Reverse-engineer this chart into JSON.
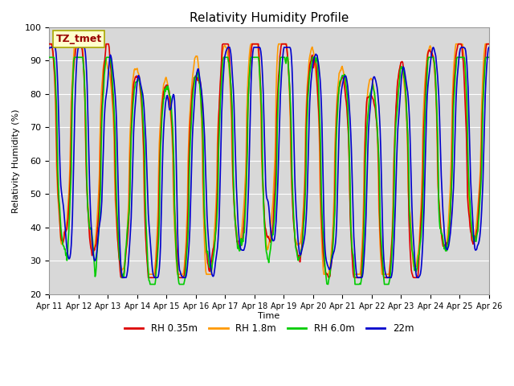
{
  "title": "Relativity Humidity Profile",
  "ylabel": "Relativity Humidity (%)",
  "xlabel": "Time",
  "ylim": [
    20,
    100
  ],
  "annotation": "TZ_tmet",
  "legend": [
    "RH 0.35m",
    "RH 1.8m",
    "RH 6.0m",
    "22m"
  ],
  "colors": [
    "#dd0000",
    "#ff9900",
    "#00cc00",
    "#0000cc"
  ],
  "tick_labels": [
    "Apr 11",
    "Apr 12",
    "Apr 13",
    "Apr 14",
    "Apr 15",
    "Apr 16",
    "Apr 17",
    "Apr 18",
    "Apr 19",
    "Apr 20",
    "Apr 21",
    "Apr 22",
    "Apr 23",
    "Apr 24",
    "Apr 25",
    "Apr 26"
  ],
  "bg_color": "#d8d8d8",
  "fig_color": "#ffffff",
  "grid_color": "#ffffff"
}
